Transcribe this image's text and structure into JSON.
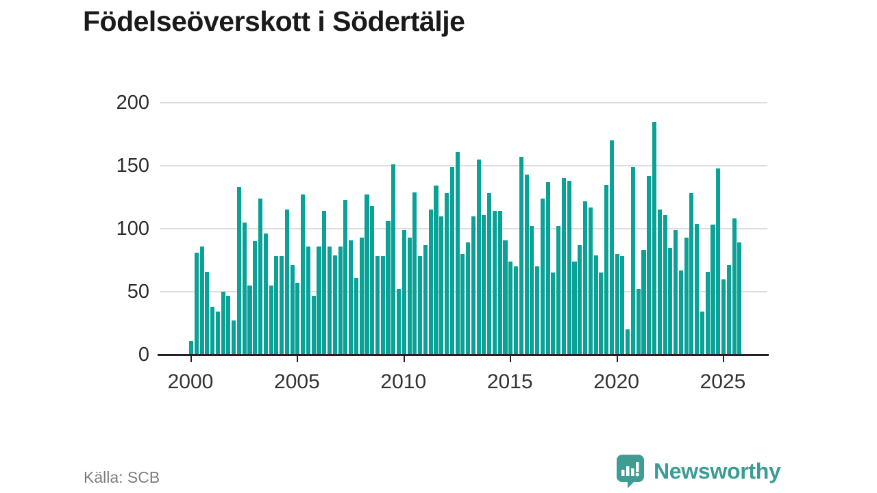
{
  "title": "Födelseöverskott i Södertälje",
  "source": {
    "label": "Källa: SCB"
  },
  "branding": {
    "name": "Newsworthy",
    "icon": "newsworthy-speech-bubble-bar-chart-icon",
    "text_color": "#3b9c95",
    "icon_color": "#3e9c95"
  },
  "colors": {
    "bar": "#0aa296",
    "grid": "#dcdcdc",
    "axis": "#222222",
    "title_text": "#1a1a1a",
    "tick_text": "#2e2e2e",
    "source_text": "#7d7d7d",
    "background": "#ffffff"
  },
  "chart_data": {
    "type": "bar",
    "title": "Födelseöverskott i Södertälje",
    "xlabel": "",
    "ylabel": "",
    "x_start": "2000 Q1",
    "frequency": "quarterly",
    "values": [
      11,
      81,
      86,
      66,
      38,
      34,
      50,
      47,
      27,
      133,
      105,
      55,
      90,
      124,
      96,
      55,
      78,
      78,
      115,
      71,
      57,
      127,
      86,
      47,
      86,
      114,
      86,
      79,
      86,
      123,
      91,
      61,
      93,
      127,
      118,
      78,
      78,
      106,
      151,
      52,
      99,
      93,
      129,
      78,
      87,
      115,
      134,
      110,
      128,
      149,
      161,
      80,
      89,
      110,
      155,
      111,
      128,
      114,
      114,
      91,
      74,
      70,
      157,
      143,
      102,
      70,
      124,
      137,
      65,
      102,
      140,
      138,
      74,
      87,
      122,
      117,
      79,
      65,
      135,
      170,
      80,
      78,
      20,
      149,
      52,
      83,
      142,
      185,
      115,
      111,
      85,
      99,
      67,
      93,
      128,
      104,
      34,
      66,
      103,
      148,
      60,
      71,
      108,
      89
    ],
    "x_tick_labels": [
      "2000",
      "2005",
      "2010",
      "2015",
      "2020",
      "2025"
    ],
    "x_tick_indices": [
      0,
      20,
      40,
      60,
      80,
      100
    ],
    "y_ticks": [
      0,
      50,
      100,
      150,
      200
    ],
    "ylim": [
      0,
      200
    ],
    "grid": "horizontal",
    "legend": "none"
  }
}
